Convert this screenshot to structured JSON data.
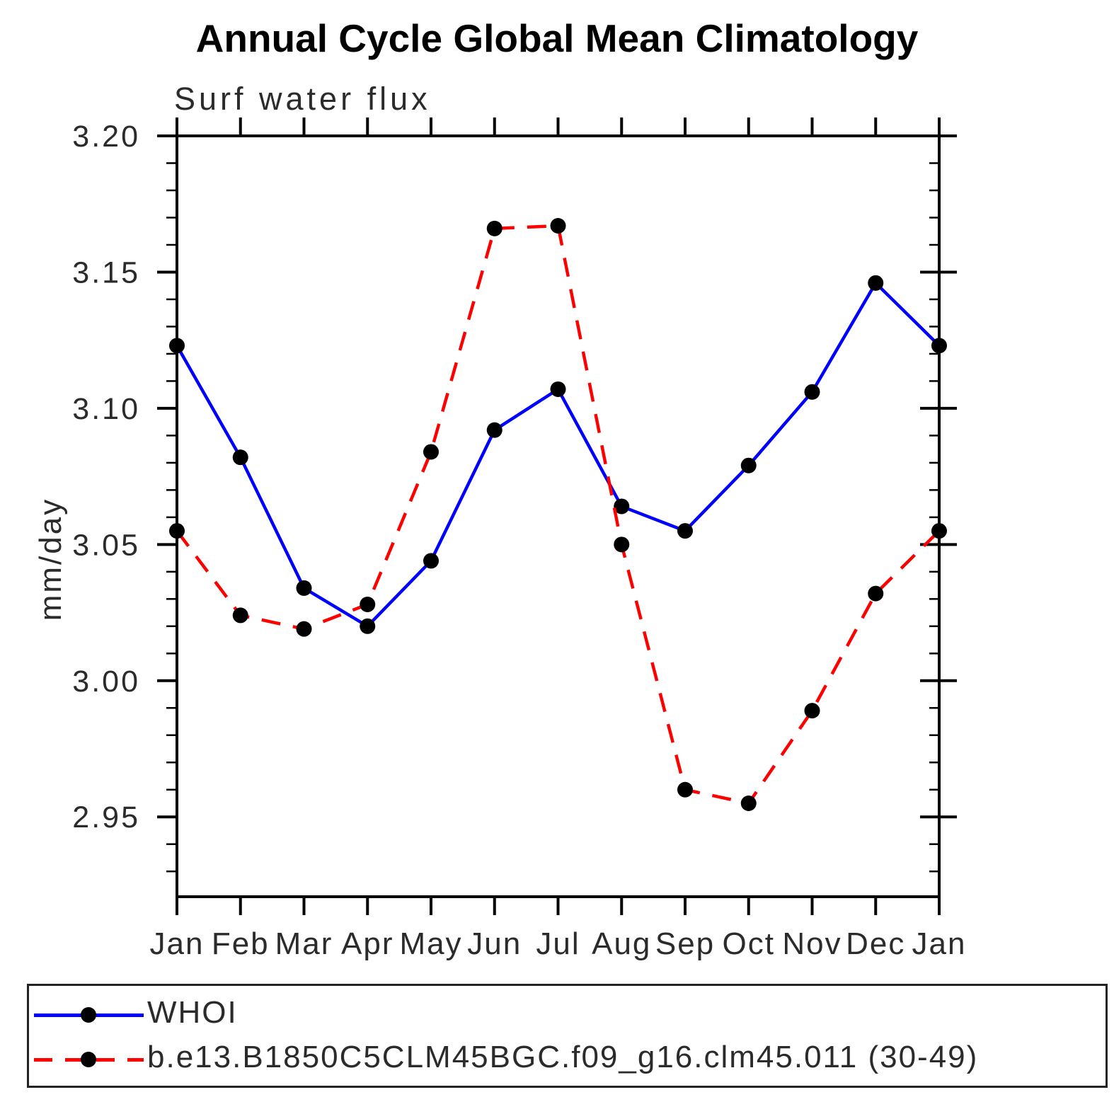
{
  "title": "Annual Cycle Global Mean Climatology",
  "subtitle": "Surf water flux",
  "ylabel": "mm/day",
  "colors": {
    "whoi_line": "#0000ff",
    "model_line": "#ff0000",
    "marker": "#000000",
    "axis": "#000000"
  },
  "legend": {
    "entries": [
      {
        "label": "WHOI",
        "style": "solid",
        "color": "#0000ff"
      },
      {
        "label": "b.e13.B1850C5CLM45BGC.f09_g16.clm45.011 (30-49)",
        "style": "dashed",
        "color": "#ff0000"
      }
    ]
  },
  "chart_data": {
    "type": "line",
    "title": "Surf water flux",
    "xlabel": "",
    "ylabel": "mm/day",
    "categories": [
      "Jan",
      "Feb",
      "Mar",
      "Apr",
      "May",
      "Jun",
      "Jul",
      "Aug",
      "Sep",
      "Oct",
      "Nov",
      "Dec",
      "Jan"
    ],
    "series": [
      {
        "name": "WHOI",
        "color": "#0000ff",
        "dash": "solid",
        "marker": "filled-circle",
        "values": [
          3.123,
          3.082,
          3.034,
          3.02,
          3.044,
          3.092,
          3.107,
          3.064,
          3.055,
          3.079,
          3.106,
          3.146,
          3.123
        ]
      },
      {
        "name": "b.e13.B1850C5CLM45BGC.f09_g16.clm45.011 (30-49)",
        "color": "#ff0000",
        "dash": "dashed",
        "marker": "filled-circle",
        "values": [
          3.055,
          3.024,
          3.019,
          3.028,
          3.084,
          3.166,
          3.167,
          3.05,
          2.96,
          2.955,
          2.989,
          3.032,
          3.055
        ]
      }
    ],
    "ylim": [
      2.9207,
      3.2
    ],
    "yticks_major": [
      2.95,
      3.0,
      3.05,
      3.1,
      3.15,
      3.2
    ],
    "ytick_labels": [
      "2.95",
      "3.00",
      "3.05",
      "3.10",
      "3.15",
      "3.20"
    ],
    "yminor_step": 0.01,
    "grid": false,
    "legend_position": "bottom"
  }
}
